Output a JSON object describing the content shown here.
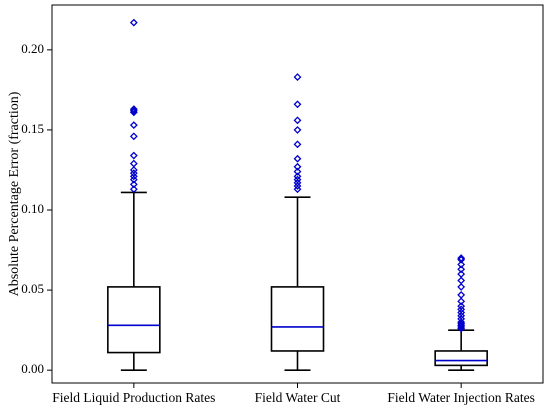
{
  "chart_data": {
    "type": "boxplot",
    "title": "",
    "xlabel": "",
    "ylabel": "Absolute Percentage Error (fraction)",
    "ylim": [
      -0.008,
      0.228
    ],
    "yticks": [
      0.0,
      0.05,
      0.1,
      0.15,
      0.2
    ],
    "ytick_labels": [
      "0.00",
      "0.05",
      "0.10",
      "0.15",
      "0.20"
    ],
    "grid": false,
    "legend": "none",
    "colors": {
      "box": "#000000",
      "median": "#0000cc",
      "outlier": "#0000cc"
    },
    "categories": [
      "Field Liquid Production Rates",
      "Field Water Cut",
      "Field Water Injection Rates"
    ],
    "boxes": [
      {
        "name": "Field Liquid Production Rates",
        "whislo": 0.0,
        "q1": 0.011,
        "med": 0.028,
        "q3": 0.052,
        "whishi": 0.111,
        "fliers": [
          0.113,
          0.116,
          0.119,
          0.121,
          0.123,
          0.125,
          0.129,
          0.134,
          0.146,
          0.153,
          0.161,
          0.162,
          0.163,
          0.217
        ]
      },
      {
        "name": "Field Water Cut",
        "whislo": 0.0,
        "q1": 0.012,
        "med": 0.027,
        "q3": 0.052,
        "whishi": 0.108,
        "fliers": [
          0.113,
          0.115,
          0.117,
          0.119,
          0.121,
          0.124,
          0.127,
          0.132,
          0.141,
          0.15,
          0.156,
          0.166,
          0.183
        ]
      },
      {
        "name": "Field Water Injection Rates",
        "whislo": 0.0,
        "q1": 0.003,
        "med": 0.006,
        "q3": 0.012,
        "whishi": 0.025,
        "fliers": [
          0.026,
          0.027,
          0.028,
          0.029,
          0.03,
          0.032,
          0.034,
          0.036,
          0.038,
          0.04,
          0.043,
          0.047,
          0.052,
          0.056,
          0.06,
          0.063,
          0.066,
          0.069,
          0.07
        ]
      }
    ]
  }
}
